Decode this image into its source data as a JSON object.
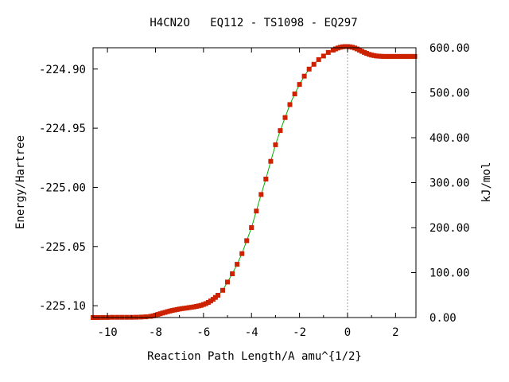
{
  "chart_data": {
    "type": "line",
    "title": "H4CN2O   EQ112 - TS1098 - EQ297",
    "xlabel": "Reaction Path Length/A amu^{1/2}",
    "ylabel": "Energy/Hartree",
    "y2label": "kJ/mol",
    "xlim": [
      -10.6,
      2.85
    ],
    "ylim": [
      -225.11,
      -224.882
    ],
    "y2lim": [
      0,
      600
    ],
    "x_ticks": [
      {
        "value": -10,
        "label": "-10"
      },
      {
        "value": -8,
        "label": "-8"
      },
      {
        "value": -6,
        "label": "-6"
      },
      {
        "value": -4,
        "label": "-4"
      },
      {
        "value": -2,
        "label": "-2"
      },
      {
        "value": 0,
        "label": "0"
      },
      {
        "value": 2,
        "label": "2"
      }
    ],
    "y_ticks": [
      {
        "value": -224.9,
        "label": "-224.90"
      },
      {
        "value": -224.95,
        "label": "-224.95"
      },
      {
        "value": -225.0,
        "label": "-225.00"
      },
      {
        "value": -225.05,
        "label": "-225.05"
      },
      {
        "value": -225.1,
        "label": "-225.10"
      }
    ],
    "y2_ticks": [
      {
        "value": 0,
        "label": "0.00"
      },
      {
        "value": 100,
        "label": "100.00"
      },
      {
        "value": 200,
        "label": "200.00"
      },
      {
        "value": 300,
        "label": "300.00"
      },
      {
        "value": 400,
        "label": "400.00"
      },
      {
        "value": 500,
        "label": "500.00"
      },
      {
        "value": 600,
        "label": "600.00"
      }
    ],
    "ts_marker_x": 0,
    "grid": false,
    "colors": {
      "line": "#00b000",
      "marker": "#cc2200",
      "ts_line": "#a0a0a0",
      "axis": "#000000"
    },
    "series": [
      {
        "x": [
          -10.6,
          -10.4,
          -10.2,
          -10.0,
          -9.8,
          -9.6,
          -9.4,
          -9.2,
          -9.0,
          -8.8,
          -8.6,
          -8.4,
          -8.2,
          -8.1,
          -8.0,
          -7.9,
          -7.8,
          -7.7,
          -7.6,
          -7.5,
          -7.4,
          -7.3,
          -7.2,
          -7.1,
          -7.0,
          -6.9,
          -6.8,
          -6.7,
          -6.6,
          -6.5,
          -6.4,
          -6.3,
          -6.2,
          -6.1,
          -6.0,
          -5.9,
          -5.8,
          -5.7,
          -5.6,
          -5.5,
          -5.4,
          -5.2,
          -5.0,
          -4.8,
          -4.6,
          -4.4,
          -4.2,
          -4.0,
          -3.8,
          -3.6,
          -3.4,
          -3.2,
          -3.0,
          -2.8,
          -2.6,
          -2.4,
          -2.2,
          -2.0,
          -1.8,
          -1.6,
          -1.4,
          -1.2,
          -1.0,
          -0.8,
          -0.6,
          -0.5,
          -0.4,
          -0.3,
          -0.2,
          -0.1,
          0.0,
          0.1,
          0.2,
          0.3,
          0.4,
          0.5,
          0.6,
          0.7,
          0.8,
          0.9,
          1.0,
          1.1,
          1.2,
          1.3,
          1.4,
          1.5,
          1.6,
          1.7,
          1.8,
          1.9,
          2.0,
          2.1,
          2.2,
          2.3,
          2.4,
          2.5,
          2.6,
          2.7,
          2.8
        ],
        "y": [
          -225.11,
          -225.11,
          -225.1099,
          -225.1099,
          -225.1098,
          -225.1098,
          -225.1098,
          -225.1098,
          -225.1098,
          -225.1097,
          -225.1096,
          -225.1094,
          -225.109,
          -225.1086,
          -225.108,
          -225.1074,
          -225.1068,
          -225.1062,
          -225.1056,
          -225.105,
          -225.1045,
          -225.104,
          -225.1036,
          -225.1032,
          -225.1028,
          -225.1025,
          -225.1022,
          -225.1019,
          -225.1016,
          -225.1013,
          -225.101,
          -225.1006,
          -225.1002,
          -225.0997,
          -225.099,
          -225.0982,
          -225.0972,
          -225.096,
          -225.0946,
          -225.093,
          -225.0912,
          -225.087,
          -225.08,
          -225.073,
          -225.065,
          -225.056,
          -225.045,
          -225.034,
          -225.02,
          -225.006,
          -224.993,
          -224.978,
          -224.964,
          -224.952,
          -224.941,
          -224.93,
          -224.921,
          -224.913,
          -224.906,
          -224.9,
          -224.896,
          -224.892,
          -224.889,
          -224.886,
          -224.884,
          -224.883,
          -224.8822,
          -224.8816,
          -224.8812,
          -224.881,
          -224.881,
          -224.8812,
          -224.8816,
          -224.8822,
          -224.883,
          -224.884,
          -224.885,
          -224.886,
          -224.8868,
          -224.8876,
          -224.8882,
          -224.8886,
          -224.8889,
          -224.8891,
          -224.8892,
          -224.8893,
          -224.8893,
          -224.8893,
          -224.8893,
          -224.8893,
          -224.8893,
          -224.8893,
          -224.8893,
          -224.8893,
          -224.8893,
          -224.8893,
          -224.8893,
          -224.8893,
          -224.8893
        ]
      }
    ]
  }
}
